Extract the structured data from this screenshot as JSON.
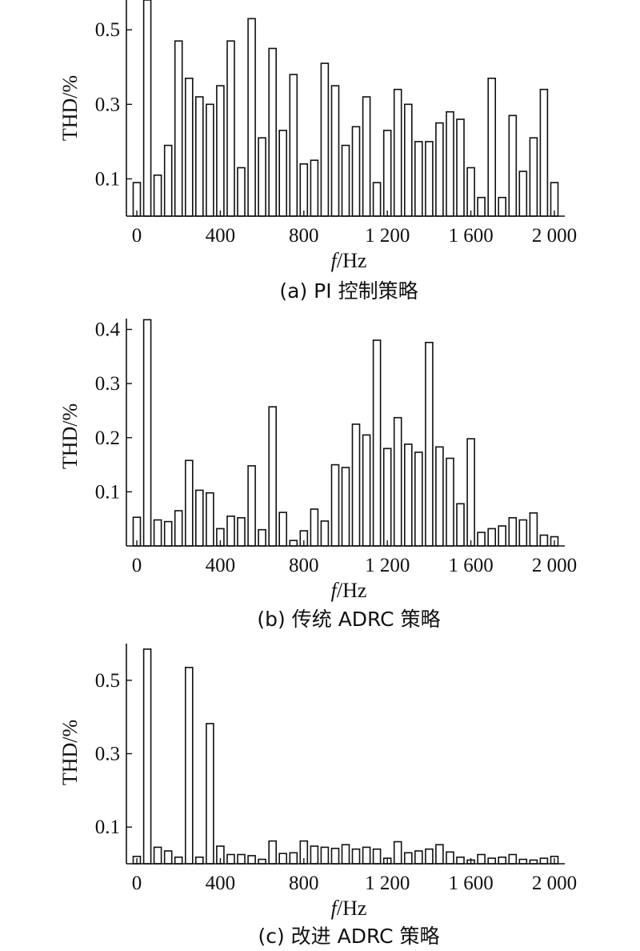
{
  "chart_data": [
    {
      "type": "bar",
      "caption": "(a) PI 控制策略",
      "ylabel": "THD/%",
      "xlabel_italic": "f",
      "xlabel_unit": "/Hz",
      "ylim": [
        0,
        0.58
      ],
      "yticks": [
        0.1,
        0.3,
        0.5
      ],
      "ytick_labels": [
        "0.1",
        "0.3",
        "0.5"
      ],
      "xticks": [
        0,
        400,
        800,
        1200,
        1600,
        2000
      ],
      "xtick_labels": [
        "0",
        "400",
        "800",
        "1 200",
        "1 600",
        "2 000"
      ],
      "x": [
        0,
        50,
        100,
        150,
        200,
        250,
        300,
        350,
        400,
        450,
        500,
        550,
        600,
        650,
        700,
        750,
        800,
        850,
        900,
        950,
        1000,
        1050,
        1100,
        1150,
        1200,
        1250,
        1300,
        1350,
        1400,
        1450,
        1500,
        1550,
        1600,
        1650,
        1700,
        1750,
        1800,
        1850,
        1900,
        1950,
        2000
      ],
      "values": [
        0.09,
        0.58,
        0.11,
        0.19,
        0.47,
        0.37,
        0.32,
        0.3,
        0.35,
        0.47,
        0.13,
        0.53,
        0.21,
        0.45,
        0.23,
        0.38,
        0.14,
        0.15,
        0.41,
        0.35,
        0.19,
        0.24,
        0.32,
        0.09,
        0.23,
        0.34,
        0.3,
        0.2,
        0.2,
        0.25,
        0.28,
        0.26,
        0.13,
        0.05,
        0.37,
        0.05,
        0.27,
        0.12,
        0.21,
        0.34,
        0.09
      ]
    },
    {
      "type": "bar",
      "caption": "(b) 传统 ADRC 策略",
      "ylabel": "THD/%",
      "xlabel_italic": "f",
      "xlabel_unit": "/Hz",
      "ylim": [
        0,
        0.42
      ],
      "yticks": [
        0.1,
        0.2,
        0.3,
        0.4
      ],
      "ytick_labels": [
        "0.1",
        "0.2",
        "0.3",
        "0.4"
      ],
      "xticks": [
        0,
        400,
        800,
        1200,
        1600,
        2000
      ],
      "xtick_labels": [
        "0",
        "400",
        "800",
        "1 200",
        "1 600",
        "2 000"
      ],
      "x": [
        0,
        50,
        100,
        150,
        200,
        250,
        300,
        350,
        400,
        450,
        500,
        550,
        600,
        650,
        700,
        750,
        800,
        850,
        900,
        950,
        1000,
        1050,
        1100,
        1150,
        1200,
        1250,
        1300,
        1350,
        1400,
        1450,
        1500,
        1550,
        1600,
        1650,
        1700,
        1750,
        1800,
        1850,
        1900,
        1950,
        2000
      ],
      "values": [
        0.053,
        0.418,
        0.048,
        0.045,
        0.065,
        0.158,
        0.103,
        0.098,
        0.032,
        0.055,
        0.052,
        0.148,
        0.03,
        0.257,
        0.062,
        0.01,
        0.028,
        0.068,
        0.046,
        0.15,
        0.145,
        0.225,
        0.205,
        0.38,
        0.18,
        0.237,
        0.188,
        0.173,
        0.376,
        0.183,
        0.162,
        0.078,
        0.198,
        0.025,
        0.032,
        0.037,
        0.052,
        0.048,
        0.061,
        0.02,
        0.017
      ]
    },
    {
      "type": "bar",
      "caption": "(c) 改进 ADRC 策略",
      "ylabel": "THD/%",
      "xlabel_italic": "f",
      "xlabel_unit": "/Hz",
      "ylim": [
        0,
        0.6
      ],
      "yticks": [
        0.1,
        0.3,
        0.5
      ],
      "ytick_labels": [
        "0.1",
        "0.3",
        "0.5"
      ],
      "xticks": [
        0,
        400,
        800,
        1200,
        1600,
        2000
      ],
      "xtick_labels": [
        "0",
        "400",
        "800",
        "1 200",
        "1 600",
        "2 000"
      ],
      "x": [
        0,
        50,
        100,
        150,
        200,
        250,
        300,
        350,
        400,
        450,
        500,
        550,
        600,
        650,
        700,
        750,
        800,
        850,
        900,
        950,
        1000,
        1050,
        1100,
        1150,
        1200,
        1250,
        1300,
        1350,
        1400,
        1450,
        1500,
        1550,
        1600,
        1650,
        1700,
        1750,
        1800,
        1850,
        1900,
        1950,
        2000
      ],
      "values": [
        0.02,
        0.585,
        0.045,
        0.035,
        0.018,
        0.535,
        0.018,
        0.382,
        0.048,
        0.025,
        0.025,
        0.022,
        0.012,
        0.062,
        0.028,
        0.03,
        0.062,
        0.048,
        0.045,
        0.042,
        0.052,
        0.04,
        0.045,
        0.04,
        0.015,
        0.06,
        0.03,
        0.035,
        0.04,
        0.052,
        0.032,
        0.018,
        0.01,
        0.025,
        0.015,
        0.018,
        0.025,
        0.012,
        0.01,
        0.015,
        0.02
      ]
    }
  ]
}
